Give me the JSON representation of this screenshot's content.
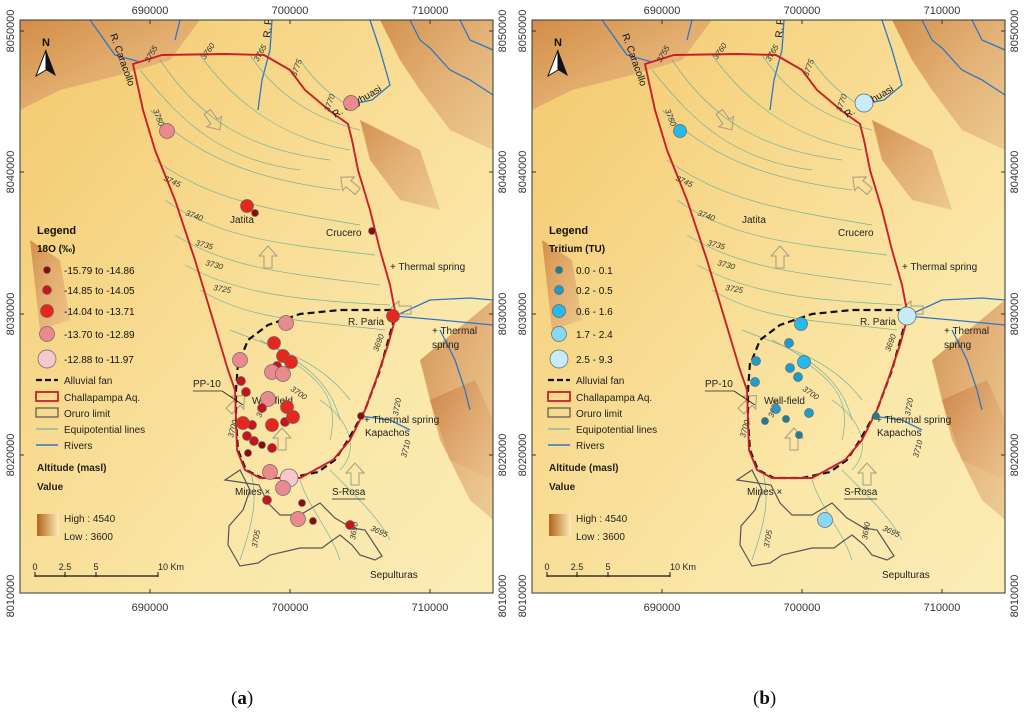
{
  "panels": [
    {
      "id": "a",
      "caption_letter": "a",
      "x_ticks": [
        "690000",
        "700000",
        "710000"
      ],
      "y_ticks": [
        "8050000",
        "8040000",
        "8030000",
        "8020000",
        "8010000"
      ],
      "north_label": "N",
      "places": {
        "caracollo": "R. Caracollo",
        "pongo": "R. Pongo Tahuira",
        "cayhuasi": "R. Cayhuasi",
        "jatita": "Jatita",
        "crucero": "Crucero",
        "thermal1": "+ Thermal spring",
        "paria": "R. Paria",
        "thermal2a": "+ Thermal",
        "thermal2b": "spring",
        "pp10": "PP-10",
        "wellfield": "Well-field",
        "thermal3": "+ Thermal spring",
        "kapachos": "Kapachos",
        "mines": "Mines ×",
        "srosa": "S-Rosa",
        "sepulturas": "Sepulturas"
      },
      "contours": [
        "3755",
        "3760",
        "3765",
        "3775",
        "3770",
        "3750",
        "3745",
        "3740",
        "3735",
        "3730",
        "3725",
        "3700",
        "3695",
        "3690",
        "3720",
        "3710",
        "3705",
        "3700",
        "3695",
        "3690"
      ],
      "legend": {
        "title": "Legend",
        "var_title": "18O (‰)",
        "classes": [
          "-15.79 to -14.86",
          "-14.85 to -14.05",
          "-14.04 to -13.71",
          "-13.70 to -12.89",
          "-12.88 to -11.97"
        ],
        "colors": [
          "#8b0a0a",
          "#c8141a",
          "#e8261c",
          "#ea8a8e",
          "#f6c8cb"
        ],
        "fan": "Alluvial fan",
        "aquifer": "Challapampa Aq.",
        "oruro": "Oruro limit",
        "equip": "Equipotential lines",
        "rivers": "Rivers",
        "alt_title": "Altitude (masl)",
        "value": "Value",
        "high": "High : 4540",
        "low": "Low : 3600"
      },
      "scale_labels": [
        "0",
        "2.5",
        "5",
        "10 Km"
      ],
      "samples": [
        {
          "x": 351,
          "y": 103,
          "c": 3
        },
        {
          "x": 167,
          "y": 131,
          "c": 3
        },
        {
          "x": 247,
          "y": 206,
          "c": 2
        },
        {
          "x": 255,
          "y": 213,
          "c": 0
        },
        {
          "x": 372,
          "y": 231,
          "c": 0
        },
        {
          "x": 393,
          "y": 316,
          "c": 2
        },
        {
          "x": 286,
          "y": 323,
          "c": 3
        },
        {
          "x": 240,
          "y": 360,
          "c": 3
        },
        {
          "x": 274,
          "y": 343,
          "c": 2
        },
        {
          "x": 283,
          "y": 356,
          "c": 2
        },
        {
          "x": 291,
          "y": 362,
          "c": 2
        },
        {
          "x": 277,
          "y": 366,
          "c": 1
        },
        {
          "x": 272,
          "y": 372,
          "c": 3
        },
        {
          "x": 283,
          "y": 374,
          "c": 3
        },
        {
          "x": 241,
          "y": 381,
          "c": 1
        },
        {
          "x": 246,
          "y": 392,
          "c": 1
        },
        {
          "x": 268,
          "y": 399,
          "c": 3
        },
        {
          "x": 262,
          "y": 408,
          "c": 1
        },
        {
          "x": 287,
          "y": 407,
          "c": 2
        },
        {
          "x": 252,
          "y": 425,
          "c": 1
        },
        {
          "x": 272,
          "y": 425,
          "c": 2
        },
        {
          "x": 285,
          "y": 422,
          "c": 1
        },
        {
          "x": 293,
          "y": 417,
          "c": 2
        },
        {
          "x": 243,
          "y": 423,
          "c": 2
        },
        {
          "x": 247,
          "y": 436,
          "c": 1
        },
        {
          "x": 254,
          "y": 441,
          "c": 1
        },
        {
          "x": 262,
          "y": 445,
          "c": 0
        },
        {
          "x": 272,
          "y": 448,
          "c": 1
        },
        {
          "x": 248,
          "y": 453,
          "c": 0
        },
        {
          "x": 270,
          "y": 472,
          "c": 3
        },
        {
          "x": 289,
          "y": 478,
          "c": 4
        },
        {
          "x": 283,
          "y": 488,
          "c": 3
        },
        {
          "x": 267,
          "y": 500,
          "c": 1
        },
        {
          "x": 302,
          "y": 503,
          "c": 0
        },
        {
          "x": 298,
          "y": 519,
          "c": 3
        },
        {
          "x": 313,
          "y": 521,
          "c": 0
        },
        {
          "x": 350,
          "y": 525,
          "c": 1
        },
        {
          "x": 361,
          "y": 416,
          "c": 0
        }
      ]
    },
    {
      "id": "b",
      "caption_letter": "b",
      "x_ticks": [
        "690000",
        "700000",
        "710000"
      ],
      "y_ticks": [
        "8050000",
        "8040000",
        "8030000",
        "8020000",
        "8010000"
      ],
      "north_label": "N",
      "places": {
        "caracollo": "R. Caracollo",
        "pongo": "R. Pongo Tahuira",
        "cayhuasi": "R. Cayhuasi",
        "jatita": "Jatita",
        "crucero": "Crucero",
        "thermal1": "+ Thermal spring",
        "paria": "R. Paria",
        "thermal2a": "+ Thermal",
        "thermal2b": "spring",
        "pp10": "PP-10",
        "wellfield": "Well-field",
        "thermal3": "+ Thermal spring",
        "kapachos": "Kapachos",
        "mines": "Mines ×",
        "srosa": "S-Rosa",
        "sepulturas": "Sepulturas"
      },
      "contours": [
        "3755",
        "3760",
        "3765",
        "3775",
        "3770",
        "3750",
        "3745",
        "3740",
        "3735",
        "3730",
        "3725",
        "3700",
        "3695",
        "3690",
        "3720",
        "3710",
        "3705",
        "3700",
        "3695",
        "3690"
      ],
      "legend": {
        "title": "Legend",
        "var_title": "Tritium (TU)",
        "classes": [
          "0.0 - 0.1",
          "0.2 - 0.5",
          "0.6 - 1.6",
          "1.7 - 2.4",
          "2.5 - 9.3"
        ],
        "colors": [
          "#1b7f9a",
          "#1c9dcc",
          "#26b9ec",
          "#86d8f4",
          "#c6ecfa"
        ],
        "fan": "Alluvial fan",
        "aquifer": "Challapampa Aq.",
        "oruro": "Oruro limit",
        "equip": "Equipotential lines",
        "rivers": "Rivers",
        "alt_title": "Altitude (masl)",
        "value": "Value",
        "high": "High : 4540",
        "low": "Low : 3600"
      },
      "scale_labels": [
        "0",
        "2.5",
        "5",
        "10 Km"
      ],
      "samples": [
        {
          "x": 352,
          "y": 103,
          "c": 4
        },
        {
          "x": 168,
          "y": 131,
          "c": 2
        },
        {
          "x": 289,
          "y": 324,
          "c": 2
        },
        {
          "x": 395,
          "y": 316,
          "c": 4
        },
        {
          "x": 244,
          "y": 361,
          "c": 1
        },
        {
          "x": 277,
          "y": 343,
          "c": 1
        },
        {
          "x": 292,
          "y": 362,
          "c": 2
        },
        {
          "x": 278,
          "y": 368,
          "c": 1
        },
        {
          "x": 286,
          "y": 377,
          "c": 1
        },
        {
          "x": 243,
          "y": 382,
          "c": 1
        },
        {
          "x": 264,
          "y": 409,
          "c": 1
        },
        {
          "x": 253,
          "y": 421,
          "c": 0
        },
        {
          "x": 297,
          "y": 413,
          "c": 1
        },
        {
          "x": 274,
          "y": 419,
          "c": 0
        },
        {
          "x": 287,
          "y": 435,
          "c": 0
        },
        {
          "x": 364,
          "y": 416,
          "c": 0
        },
        {
          "x": 313,
          "y": 520,
          "c": 3
        }
      ]
    }
  ]
}
